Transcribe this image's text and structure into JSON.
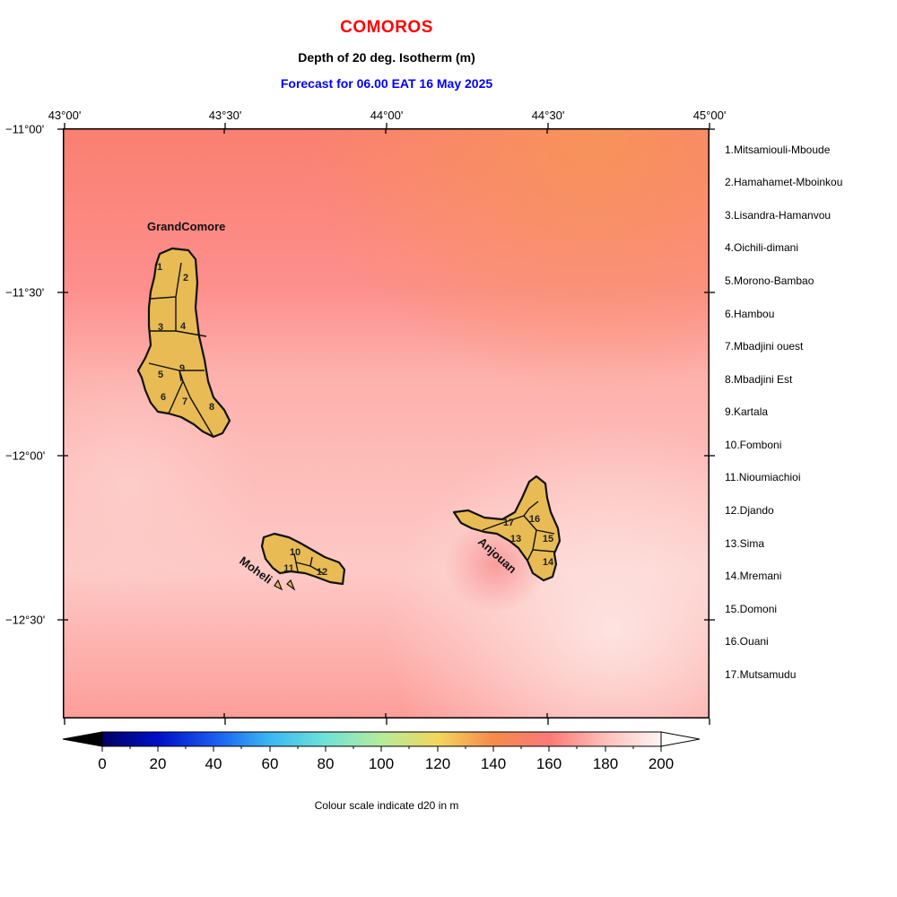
{
  "header": {
    "title": "COMOROS",
    "subtitle": "Depth of 20 deg. Isotherm (m)",
    "forecast": "Forecast for  06.00 EAT 16 May 2025"
  },
  "axes": {
    "lon_ticks": [
      "43°00'",
      "43°30'",
      "44°00'",
      "44°30'",
      "45°00'"
    ],
    "lat_ticks": [
      "−11°00'",
      "−11°30'",
      "−12°00'",
      "−12°30'"
    ]
  },
  "islands": {
    "grand_comore": "GrandComore",
    "moheli": "Moheli",
    "anjouan": "Anjouan"
  },
  "regions": {
    "r1": "1",
    "r2": "2",
    "r3": "3",
    "r4": "4",
    "r5": "5",
    "r6": "6",
    "r7": "7",
    "r8": "8",
    "r9": "9",
    "r10": "10",
    "r11": "11",
    "r12": "12",
    "r13": "13",
    "r14": "14",
    "r15": "15",
    "r16": "16",
    "r17": "17"
  },
  "legend": [
    "1.Mitsamiouli-Mboude",
    "2.Hamahamet-Mboinkou",
    "3.Lisandra-Hamanvou",
    "4.Oichili-dimani",
    "5.Morono-Bambao",
    "6.Hambou",
    "7.Mbadjini ouest",
    "8.Mbadjini Est",
    "9.Kartala",
    "10.Fomboni",
    "11.Nioumiachioi",
    "12.Djando",
    "13.Sima",
    "14.Mremani",
    "15.Domoni",
    "16.Ouani",
    "17.Mutsamudu"
  ],
  "colorbar": {
    "labels": [
      "0",
      "20",
      "40",
      "60",
      "80",
      "100",
      "120",
      "140",
      "160",
      "180",
      "200"
    ],
    "caption": "Colour scale indicate d20 in m",
    "min": 0,
    "max": 200
  },
  "colors": {
    "title": "#ff0000",
    "forecast": "#0000ff",
    "land": "#e8bb55"
  }
}
